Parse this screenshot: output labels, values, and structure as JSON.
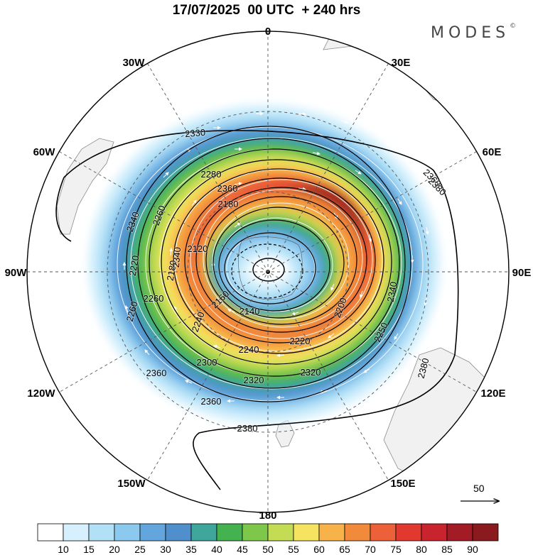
{
  "title": "17/07/2025  00 UTC  + 240 hrs",
  "brand": "MODES",
  "brand_mark": "©",
  "map": {
    "projection": "polar-stereographic",
    "hemisphere": "south",
    "longitude_labels": [
      {
        "text": "0",
        "lon": 0
      },
      {
        "text": "30E",
        "lon": 30
      },
      {
        "text": "60E",
        "lon": 60
      },
      {
        "text": "90E",
        "lon": 90
      },
      {
        "text": "120E",
        "lon": 120
      },
      {
        "text": "150E",
        "lon": 150
      },
      {
        "text": "180",
        "lon": 180
      },
      {
        "text": "150W",
        "lon": -150
      },
      {
        "text": "120W",
        "lon": -120
      },
      {
        "text": "90W",
        "lon": -90
      },
      {
        "text": "60W",
        "lon": -60
      },
      {
        "text": "30W",
        "lon": -30
      }
    ],
    "contour_labels": [
      "2330",
      "2360",
      "2380",
      "2280",
      "2260",
      "2180",
      "2120",
      "2360",
      "2340",
      "2220",
      "2180",
      "2340",
      "2240",
      "2260",
      "2160",
      "2140",
      "2200",
      "2220",
      "2240",
      "2250",
      "2300",
      "2320",
      "2320",
      "2360",
      "2380",
      "2360",
      "2380",
      "2260",
      "2340"
    ],
    "wind_reference_vector": "50",
    "wind_speed_colorbar": {
      "ticks": [
        "10",
        "15",
        "20",
        "25",
        "30",
        "35",
        "40",
        "45",
        "50",
        "55",
        "60",
        "65",
        "70",
        "75",
        "80",
        "85",
        "90"
      ],
      "colors": [
        "#ffffff",
        "#d6f1fd",
        "#b2e1f7",
        "#8cc9ee",
        "#62a6dd",
        "#4f8fcc",
        "#3fa69b",
        "#44b24f",
        "#7dc74b",
        "#c3dc53",
        "#f6e35f",
        "#f7b34a",
        "#f28a3b",
        "#ec603a",
        "#e1382f",
        "#c9242d",
        "#a31b24",
        "#8a1a1d"
      ]
    }
  }
}
